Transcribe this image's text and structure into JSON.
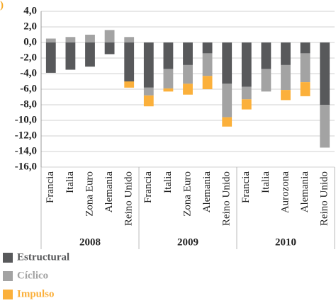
{
  "chart_data": {
    "type": "stacked_bar",
    "title": ")",
    "categories": [
      "Francia",
      "Italia",
      "Zona Euro",
      "Alemania",
      "Reino Unido",
      "Francia",
      "Italia",
      "Zona Euro",
      "Alemania",
      "Reino Unido",
      "Francia",
      "Italia",
      "Aurozona",
      "Alemania",
      "Reino Unido"
    ],
    "groups": [
      "2008",
      "2009",
      "2010"
    ],
    "series": [
      {
        "name": "Estructural",
        "color": "#58595b",
        "values": [
          -3.9,
          -3.5,
          -3.1,
          -1.5,
          -5.0,
          -5.8,
          -3.4,
          -2.9,
          -1.4,
          -5.3,
          -5.7,
          -3.4,
          -2.9,
          -1.4,
          -8.0
        ]
      },
      {
        "name": "Cíclico",
        "color": "#a3a3a3",
        "values": [
          0.5,
          0.7,
          1.0,
          1.6,
          0.7,
          -1.0,
          -2.5,
          -2.4,
          -2.9,
          -4.3,
          -1.6,
          -2.9,
          -3.2,
          -3.7,
          -5.5
        ]
      },
      {
        "name": "Impulso",
        "color": "#fbb03b",
        "values": [
          0,
          0,
          0,
          0,
          -0.8,
          -1.4,
          -0.4,
          -1.4,
          -1.7,
          -1.2,
          -1.3,
          0,
          -1.3,
          -1.8,
          0
        ]
      }
    ],
    "ylim": [
      -16,
      4
    ],
    "yticks": [
      {
        "value": 4,
        "label": "4,0"
      },
      {
        "value": 2,
        "label": "2,0"
      },
      {
        "value": 0,
        "label": "0,0"
      },
      {
        "value": -2,
        "label": "-2,0"
      },
      {
        "value": -4,
        "label": "-4,0"
      },
      {
        "value": -6,
        "label": "-6,0"
      },
      {
        "value": -8,
        "label": "-8,0"
      },
      {
        "value": -10,
        "label": "-10,0"
      },
      {
        "value": -12,
        "label": "-12,0"
      },
      {
        "value": -14,
        "label": "-14,0"
      },
      {
        "value": -16,
        "label": "-16,0"
      }
    ],
    "grid": true
  }
}
